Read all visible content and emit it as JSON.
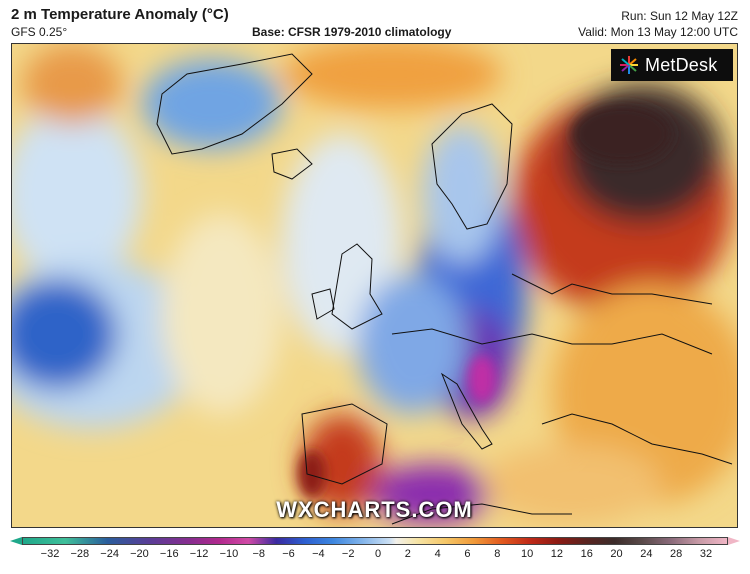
{
  "header": {
    "title": "2 m Temperature Anomaly (°C)",
    "model": "GFS 0.25°",
    "base": "Base: CFSR 1979-2010 climatology",
    "run": "Run: Sun 12 May 12Z",
    "valid": "Valid: Mon 13 May 12:00 UTC"
  },
  "logo": {
    "text": "MetDesk",
    "icon": "sunburst-logo-icon"
  },
  "watermark": "WXCHARTS.COM",
  "legend": {
    "ticks": [
      "−32",
      "−28",
      "−24",
      "−20",
      "−16",
      "−12",
      "−10",
      "−8",
      "−6",
      "−4",
      "−2",
      "0",
      "2",
      "4",
      "6",
      "8",
      "10",
      "12",
      "16",
      "20",
      "24",
      "28",
      "32"
    ]
  },
  "colors": {
    "cold": "#2d5fd0",
    "very_cold": "#c02ea6",
    "warm": "#f0a040",
    "hot": "#c02a18",
    "extreme": "#3c2c2a",
    "neutral": "#f4ecd0"
  }
}
